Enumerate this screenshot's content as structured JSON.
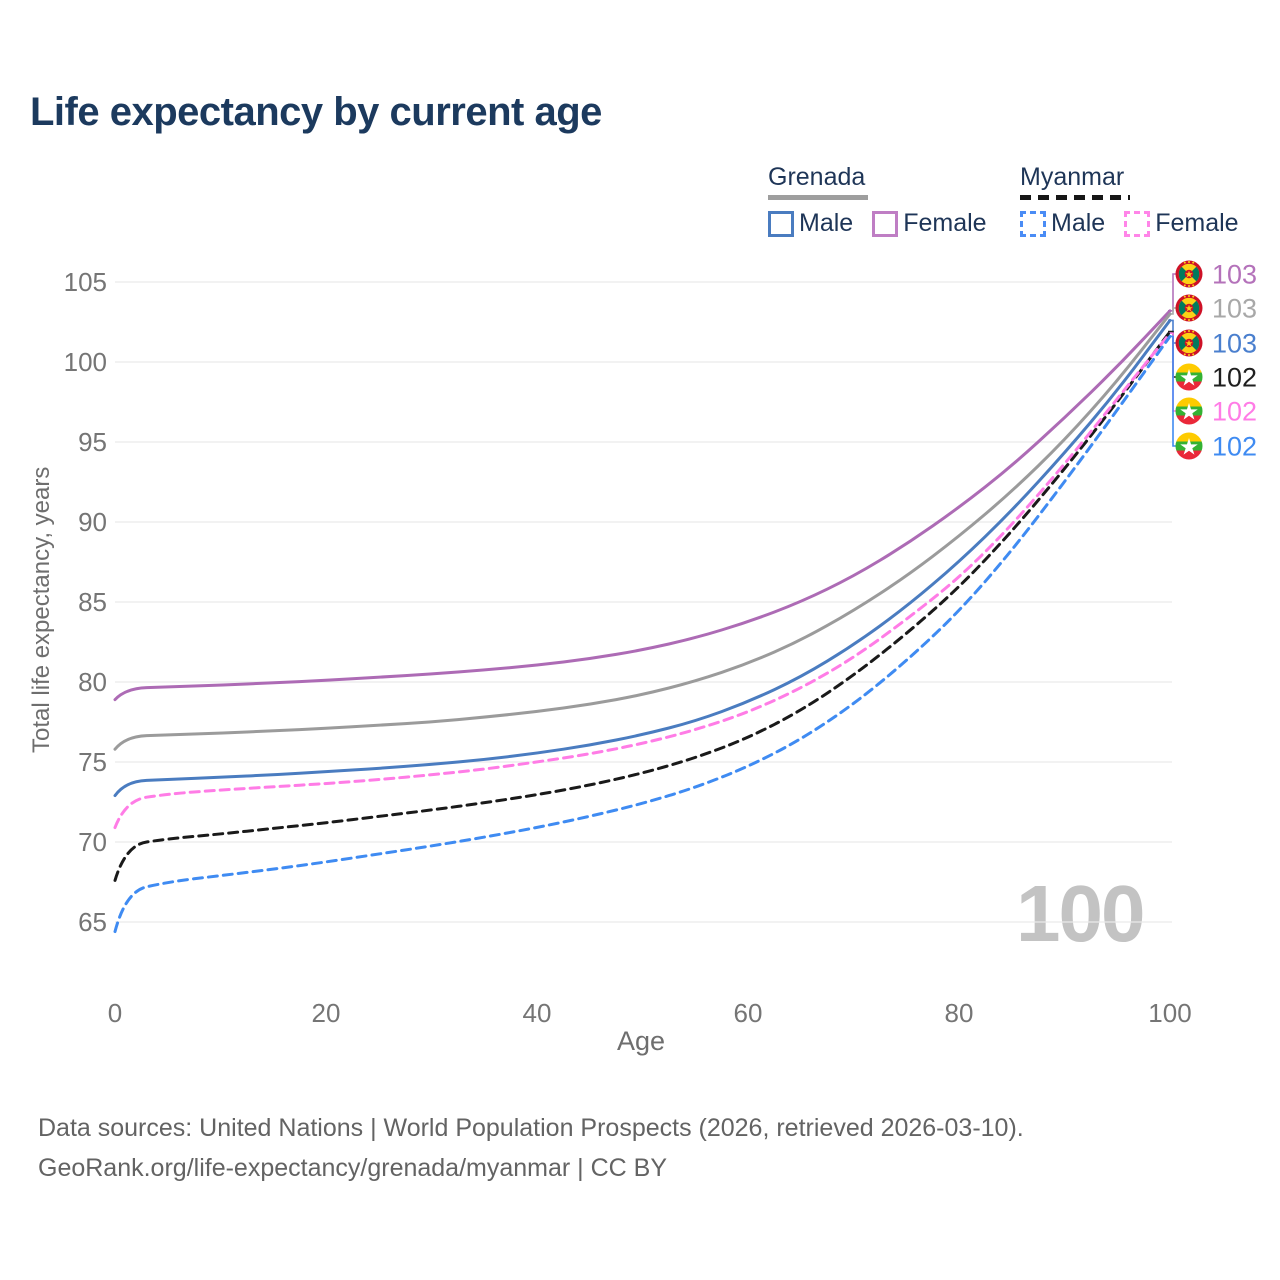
{
  "page": {
    "title": "Life expectancy by current age",
    "watermark": "100"
  },
  "legend": {
    "groups": [
      {
        "country": "Grenada",
        "line_style": "solid",
        "line_color": "#9e9e9e",
        "items": [
          {
            "label": "Male",
            "color": "#4a7cc0",
            "dashed": false
          },
          {
            "label": "Female",
            "color": "#bf7ec4",
            "dashed": false
          }
        ]
      },
      {
        "country": "Myanmar",
        "line_style": "dashed",
        "line_color": "#161616",
        "items": [
          {
            "label": "Male",
            "color": "#4a8cf5",
            "dashed": true
          },
          {
            "label": "Female",
            "color": "#ff85e8",
            "dashed": true
          }
        ]
      }
    ]
  },
  "chart_data": {
    "type": "line",
    "title": "Life expectancy by current age",
    "xlabel": "Age",
    "ylabel": "Total life expectancy, years",
    "xlim": [
      0,
      100
    ],
    "ylim": [
      65,
      105
    ],
    "x_ticks": [
      0,
      20,
      40,
      60,
      80,
      100
    ],
    "y_ticks": [
      65,
      70,
      75,
      80,
      85,
      90,
      95,
      100,
      105
    ],
    "grid": "horizontal",
    "legend_position": "top-right",
    "x": [
      0,
      1,
      5,
      10,
      15,
      20,
      25,
      30,
      35,
      40,
      45,
      50,
      55,
      60,
      65,
      70,
      75,
      80,
      85,
      90,
      95,
      100
    ],
    "series": [
      {
        "name": "Grenada Female",
        "country": "Grenada",
        "sex": "Female",
        "color": "#ad6bb5",
        "label_color": "#b472ba",
        "dashed": false,
        "flag": "grenada",
        "end_label": "103",
        "values": [
          78.9,
          79.6,
          79.7,
          79.8,
          79.95,
          80.1,
          80.3,
          80.5,
          80.75,
          81.05,
          81.45,
          82.0,
          82.75,
          83.75,
          85.0,
          86.6,
          88.6,
          90.9,
          93.5,
          96.5,
          99.7,
          103.2
        ]
      },
      {
        "name": "Grenada Both sexes",
        "country": "Grenada",
        "sex": "Both",
        "color": "#9b9b9b",
        "label_color": "#a8a8a8",
        "dashed": false,
        "flag": "grenada",
        "end_label": "103",
        "values": [
          75.8,
          76.6,
          76.7,
          76.8,
          76.95,
          77.1,
          77.3,
          77.5,
          77.8,
          78.15,
          78.6,
          79.2,
          80.05,
          81.15,
          82.6,
          84.45,
          86.6,
          89.1,
          91.9,
          95.1,
          98.8,
          103.0
        ]
      },
      {
        "name": "Grenada Male",
        "country": "Grenada",
        "sex": "Male",
        "color": "#4a7cc0",
        "label_color": "#4a7fce",
        "dashed": false,
        "flag": "grenada",
        "end_label": "103",
        "values": [
          72.9,
          73.8,
          73.9,
          74.05,
          74.2,
          74.4,
          74.6,
          74.85,
          75.15,
          75.55,
          76.05,
          76.7,
          77.55,
          78.75,
          80.3,
          82.3,
          84.7,
          87.5,
          90.7,
          94.3,
          98.2,
          102.6
        ]
      },
      {
        "name": "Myanmar Both sexes",
        "country": "Myanmar",
        "sex": "Both",
        "color": "#1a1a1a",
        "label_color": "#1f1f1f",
        "dashed": true,
        "flag": "myanmar",
        "end_label": "102",
        "values": [
          67.6,
          69.8,
          70.2,
          70.5,
          70.85,
          71.2,
          71.6,
          72.0,
          72.45,
          72.95,
          73.55,
          74.3,
          75.25,
          76.5,
          78.2,
          80.4,
          83.0,
          85.9,
          89.4,
          93.3,
          97.5,
          101.9
        ]
      },
      {
        "name": "Myanmar Female",
        "country": "Myanmar",
        "sex": "Female",
        "color": "#ff7ce6",
        "label_color": "#ff7ce6",
        "dashed": true,
        "flag": "myanmar",
        "end_label": "102",
        "values": [
          70.9,
          72.6,
          73.0,
          73.25,
          73.45,
          73.65,
          73.9,
          74.2,
          74.55,
          75.0,
          75.5,
          76.15,
          77.0,
          78.1,
          79.6,
          81.5,
          83.9,
          86.5,
          89.8,
          93.6,
          97.7,
          101.8
        ]
      },
      {
        "name": "Myanmar Male",
        "country": "Myanmar",
        "sex": "Male",
        "color": "#3f8bf2",
        "label_color": "#3f8bf2",
        "dashed": true,
        "flag": "myanmar",
        "end_label": "102",
        "values": [
          64.4,
          66.9,
          67.5,
          67.9,
          68.3,
          68.75,
          69.25,
          69.75,
          70.3,
          70.9,
          71.6,
          72.4,
          73.4,
          74.7,
          76.4,
          78.6,
          81.3,
          84.4,
          88.2,
          92.5,
          97.0,
          101.6
        ]
      }
    ]
  },
  "footer": {
    "line1": "Data sources: United Nations | World Population Prospects (2026, retrieved 2026-03-10).",
    "line2": "GeoRank.org/life-expectancy/grenada/myanmar | CC BY"
  }
}
